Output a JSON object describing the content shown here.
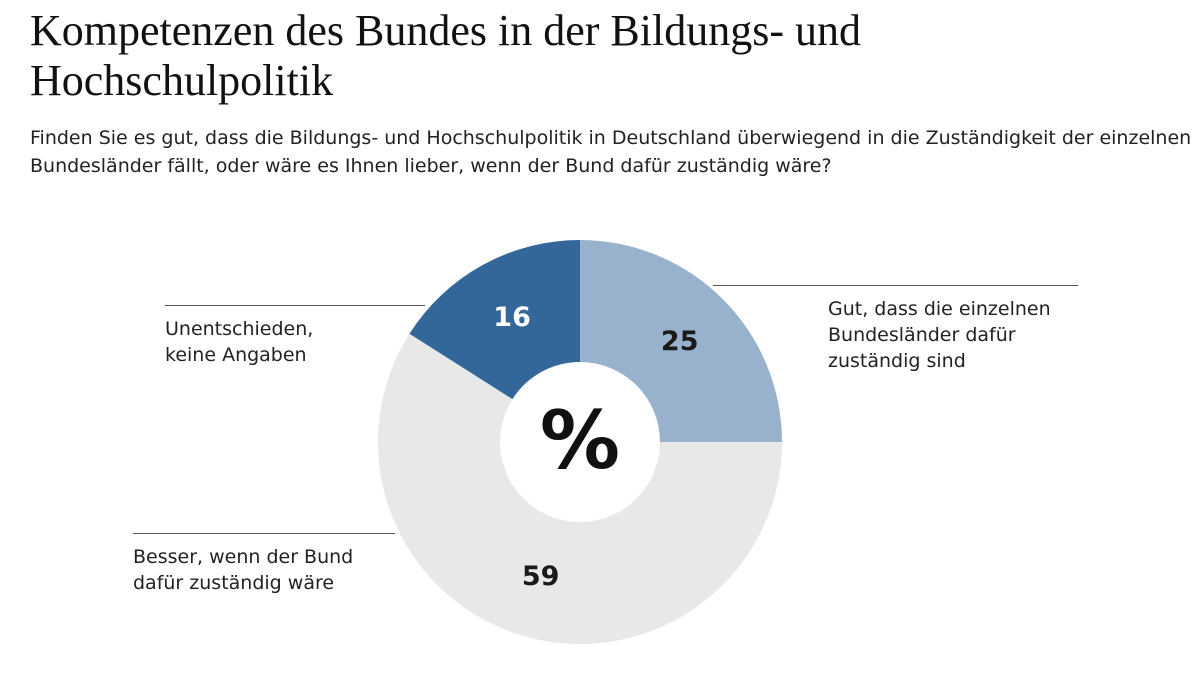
{
  "chart_data": {
    "type": "pie",
    "title": "Kompetenzen des Bundes in der Bildungs- und Hochschulpolitik",
    "subtitle": "Finden Sie es gut, dass die Bildungs- und Hochschulpolitik in Deutschland überwiegend in die Zuständigkeit der einzelnen Bundesländer fällt, oder wäre es Ihnen lieber, wenn der Bund dafür zuständig wäre?",
    "center_label": "%",
    "categories": [
      "Gut, dass die einzelnen Bundesländer dafür zuständig sind",
      "Besser, wenn der Bund dafür zuständig wäre",
      "Unentschieden, keine Angaben"
    ],
    "values": [
      25,
      59,
      16
    ],
    "colors": [
      "#98b1cc",
      "#e8e8e8",
      "#336699"
    ],
    "label_colors": [
      "#1a1a1a",
      "#1a1a1a",
      "#ffffff"
    ]
  }
}
